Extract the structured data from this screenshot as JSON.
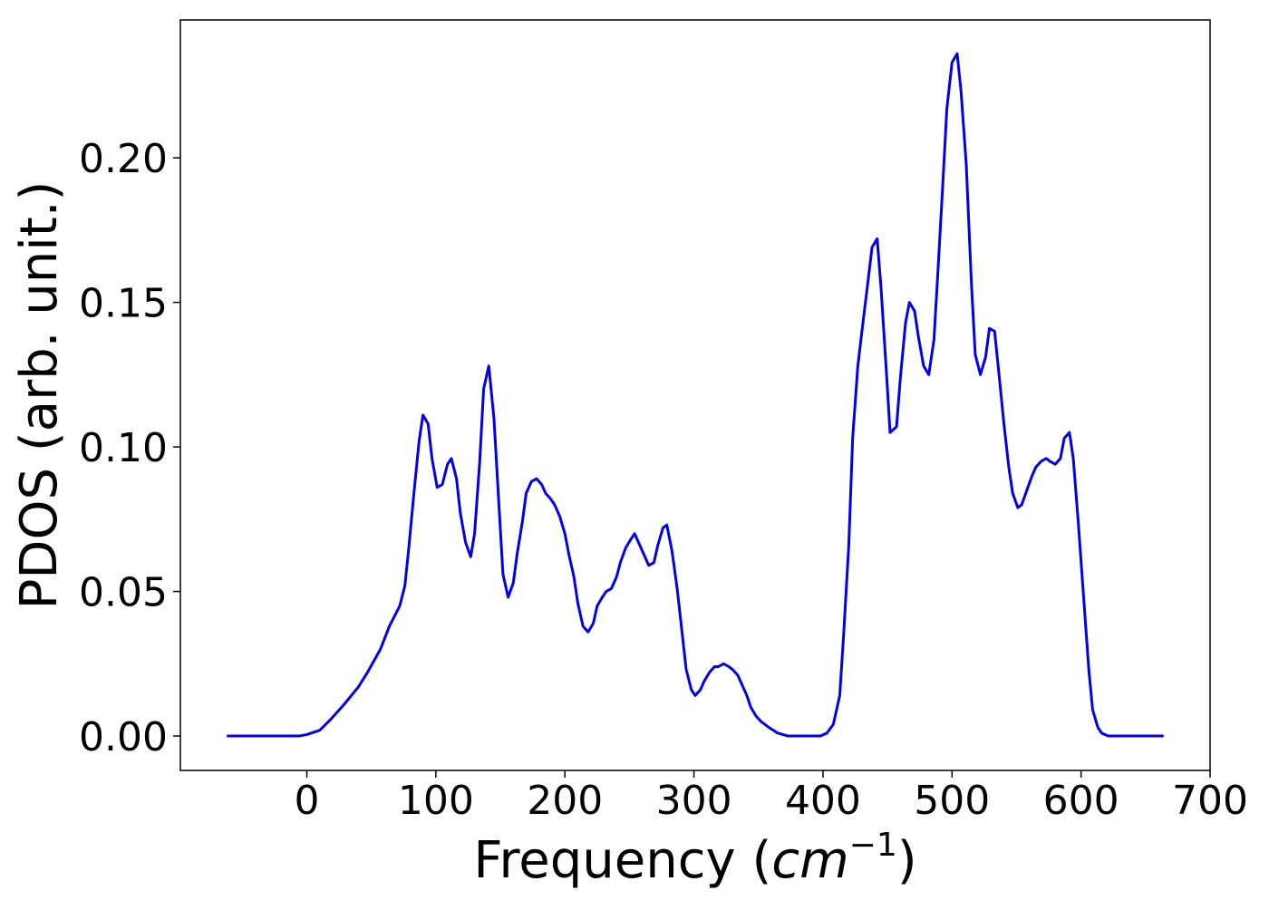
{
  "chart_data": {
    "type": "line",
    "xlabel": {
      "prefix": "Frequency (",
      "unit": "cm",
      "exponent": "−1",
      "suffix": ")"
    },
    "ylabel": "PDOS (arb. unit.)",
    "x": [
      -62,
      -6,
      0,
      10,
      19,
      29,
      40,
      47,
      57,
      64,
      72,
      76,
      79,
      83,
      87,
      90,
      94,
      97,
      101,
      105,
      109,
      112,
      116,
      119,
      123,
      127,
      130,
      134,
      137,
      141,
      145,
      149,
      152,
      156,
      160,
      163,
      167,
      170,
      174,
      178,
      182,
      185,
      189,
      192,
      196,
      200,
      203,
      207,
      210,
      214,
      218,
      222,
      225,
      229,
      232,
      236,
      240,
      243,
      247,
      251,
      254,
      258,
      262,
      265,
      269,
      272,
      276,
      279,
      283,
      287,
      291,
      294,
      298,
      301,
      305,
      308,
      312,
      316,
      319,
      323,
      327,
      330,
      334,
      337,
      341,
      344,
      348,
      352,
      358,
      365,
      373,
      398,
      403,
      408,
      413,
      416,
      420,
      423,
      427,
      431,
      434,
      438,
      442,
      445,
      449,
      452,
      457,
      460,
      464,
      467,
      471,
      474,
      478,
      482,
      486,
      489,
      493,
      496,
      500,
      504,
      507,
      511,
      515,
      518,
      522,
      526,
      529,
      533,
      536,
      540,
      544,
      547,
      551,
      554,
      558,
      562,
      565,
      569,
      573,
      576,
      580,
      584,
      587,
      591,
      594,
      598,
      602,
      606,
      609,
      613,
      616,
      621,
      664
    ],
    "series": [
      {
        "name": "PDOS",
        "color": "#0000ee",
        "values": [
          0,
          0,
          0.0005,
          0.002,
          0.006,
          0.011,
          0.017,
          0.022,
          0.03,
          0.038,
          0.045,
          0.052,
          0.065,
          0.084,
          0.102,
          0.111,
          0.108,
          0.096,
          0.086,
          0.087,
          0.094,
          0.096,
          0.089,
          0.077,
          0.067,
          0.062,
          0.07,
          0.095,
          0.12,
          0.128,
          0.11,
          0.079,
          0.056,
          0.048,
          0.053,
          0.063,
          0.074,
          0.084,
          0.088,
          0.089,
          0.087,
          0.084,
          0.082,
          0.08,
          0.076,
          0.07,
          0.063,
          0.055,
          0.046,
          0.038,
          0.036,
          0.039,
          0.045,
          0.048,
          0.05,
          0.051,
          0.055,
          0.06,
          0.065,
          0.068,
          0.07,
          0.066,
          0.062,
          0.059,
          0.06,
          0.066,
          0.072,
          0.073,
          0.064,
          0.051,
          0.035,
          0.023,
          0.016,
          0.014,
          0.016,
          0.019,
          0.022,
          0.024,
          0.024,
          0.025,
          0.024,
          0.023,
          0.021,
          0.018,
          0.014,
          0.01,
          0.007,
          0.005,
          0.003,
          0.001,
          0,
          0,
          0.001,
          0.004,
          0.014,
          0.035,
          0.066,
          0.103,
          0.128,
          0.143,
          0.154,
          0.169,
          0.172,
          0.155,
          0.127,
          0.105,
          0.107,
          0.124,
          0.143,
          0.15,
          0.147,
          0.138,
          0.128,
          0.125,
          0.137,
          0.16,
          0.192,
          0.217,
          0.233,
          0.236,
          0.223,
          0.198,
          0.157,
          0.132,
          0.125,
          0.131,
          0.141,
          0.14,
          0.127,
          0.109,
          0.093,
          0.084,
          0.079,
          0.08,
          0.085,
          0.09,
          0.093,
          0.095,
          0.096,
          0.095,
          0.094,
          0.096,
          0.103,
          0.105,
          0.096,
          0.073,
          0.048,
          0.023,
          0.009,
          0.003,
          0.001,
          0,
          0
        ]
      }
    ],
    "xlim": [
      -98,
      700
    ],
    "ylim": [
      -0.0119,
      0.2477
    ],
    "xticks": [
      0,
      100,
      200,
      300,
      400,
      500,
      600,
      700
    ],
    "yticks": [
      {
        "value": 0,
        "label": "0.00"
      },
      {
        "value": 0.05,
        "label": "0.05"
      },
      {
        "value": 0.1,
        "label": "0.10"
      },
      {
        "value": 0.15,
        "label": "0.15"
      },
      {
        "value": 0.2,
        "label": "0.20"
      }
    ],
    "grid": false
  }
}
